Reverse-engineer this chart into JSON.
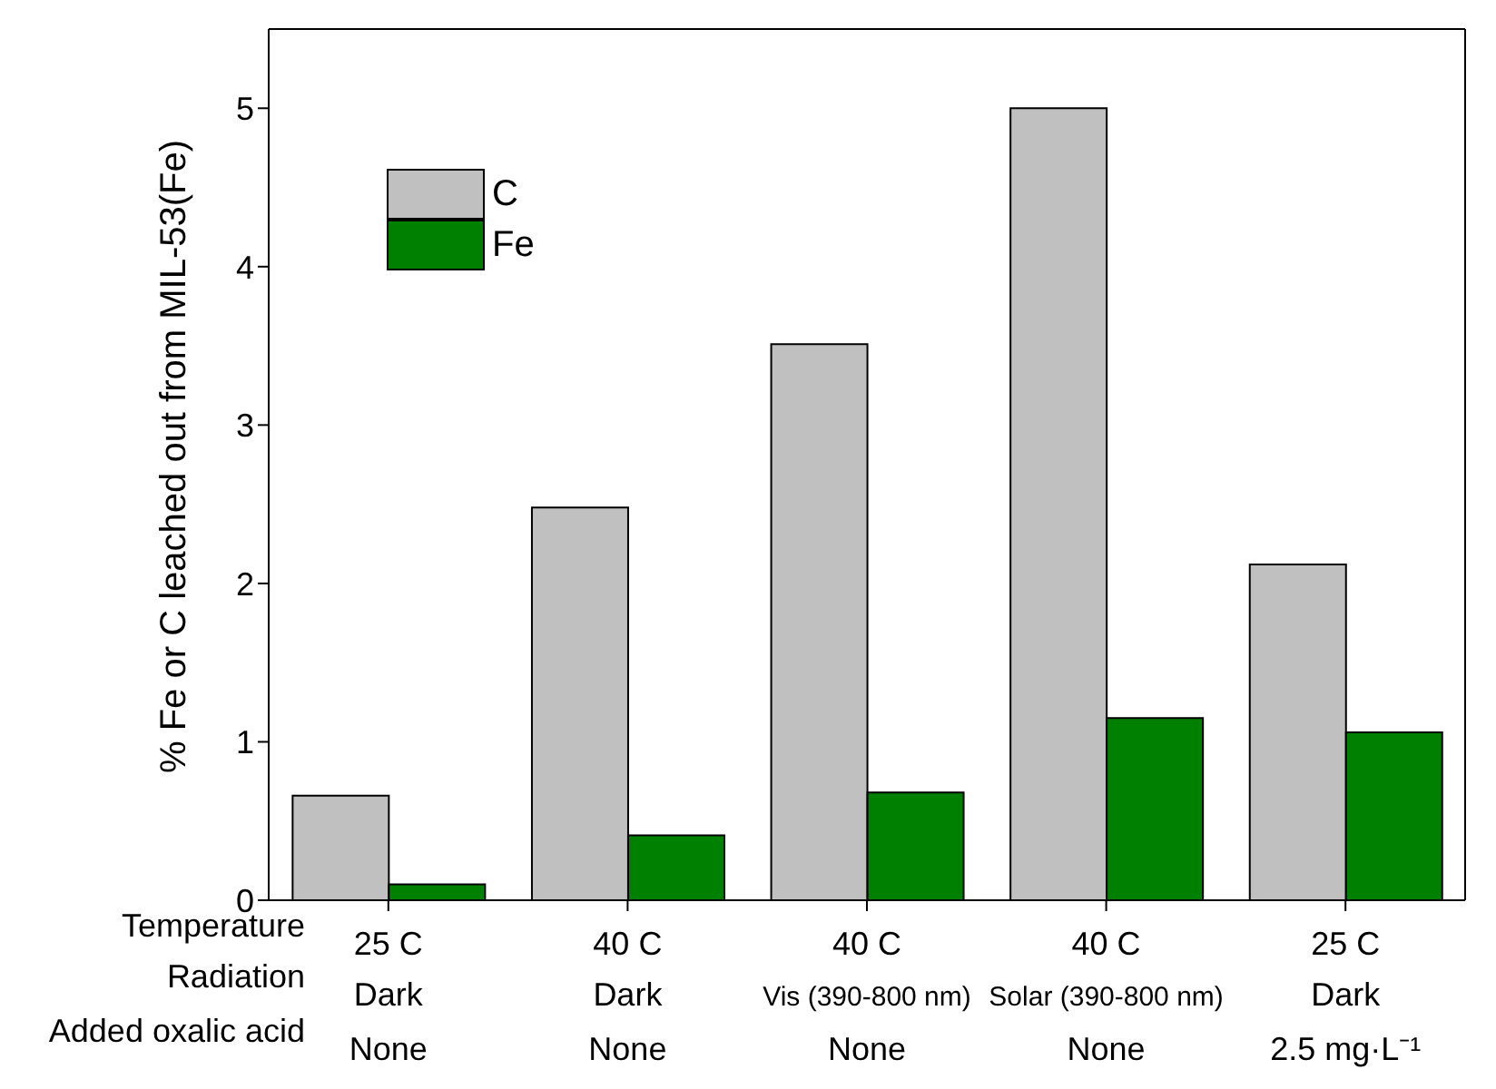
{
  "chart_data": {
    "type": "bar",
    "ylabel": "% Fe or C leached out from MIL-53(Fe)",
    "categories": [
      "25 C\nDark\nNone",
      "40 C\nDark\nNone",
      "40 C\nVis (390-800 nm)\nNone",
      "40 C\nSolar (390-800 nm)\nNone",
      "25 C\nDark\n2.5 mg·L⁻¹"
    ],
    "series": [
      {
        "name": "C",
        "color": "#c0c0c0",
        "values": [
          0.66,
          2.48,
          3.51,
          5.0,
          2.12
        ]
      },
      {
        "name": "Fe",
        "color": "#008000",
        "values": [
          0.1,
          0.41,
          0.68,
          1.15,
          1.06
        ]
      }
    ],
    "annotations": [
      "Temperature",
      "Radiation",
      "Added oxalic acid"
    ],
    "ylim": [
      0,
      5.5
    ],
    "yticks": [
      0,
      1,
      2,
      3,
      4,
      5
    ],
    "legend": "top left"
  }
}
